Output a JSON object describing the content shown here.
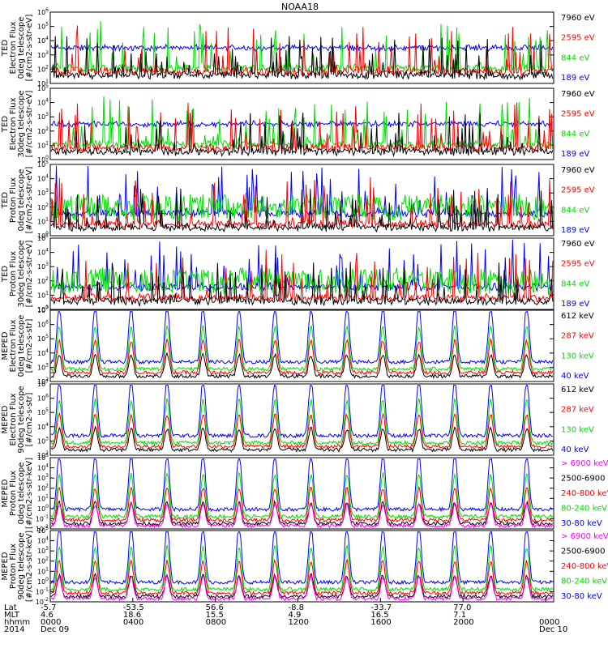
{
  "title": "NOAA18",
  "colors": {
    "black": "#000000",
    "red": "#ff0000",
    "green": "#00dd00",
    "blue": "#0000ff",
    "magenta": "#ff00ff"
  },
  "chart_data": [
    {
      "type": "line",
      "ylabel": [
        "TED",
        "Electron Flux",
        "0deg telescope",
        "[#/cm2-s-str-eV]"
      ],
      "ylog_range": [
        1,
        6
      ],
      "channels": [
        {
          "label": "7960 eV",
          "color": "black"
        },
        {
          "label": "2595 eV",
          "color": "red"
        },
        {
          "label": "844 eV",
          "color": "green"
        },
        {
          "label": "189 eV",
          "color": "blue"
        }
      ]
    },
    {
      "type": "line",
      "ylabel": [
        "TED",
        "Electron Flux",
        "30deg telescope",
        "[#/cm2-s-str-eV]"
      ],
      "ylog_range": [
        0,
        5
      ],
      "channels": [
        {
          "label": "7960 eV",
          "color": "black"
        },
        {
          "label": "2595 eV",
          "color": "red"
        },
        {
          "label": "844 eV",
          "color": "green"
        },
        {
          "label": "189 eV",
          "color": "blue"
        }
      ]
    },
    {
      "type": "line",
      "ylabel": [
        "TED",
        "Proton Flux",
        "0deg telescope",
        "[#/cm2-s-str-eV]"
      ],
      "ylog_range": [
        0,
        5
      ],
      "channels": [
        {
          "label": "7960 eV",
          "color": "black"
        },
        {
          "label": "2595 eV",
          "color": "red"
        },
        {
          "label": "844 eV",
          "color": "green"
        },
        {
          "label": "189 eV",
          "color": "blue"
        }
      ]
    },
    {
      "type": "line",
      "ylabel": [
        "TED",
        "Proton Flux",
        "30deg telescope",
        "[#/cm2-s-str-eV]"
      ],
      "ylog_range": [
        0,
        5
      ],
      "channels": [
        {
          "label": "7960 eV",
          "color": "black"
        },
        {
          "label": "2595 eV",
          "color": "red"
        },
        {
          "label": "844 eV",
          "color": "green"
        },
        {
          "label": "189 eV",
          "color": "blue"
        }
      ]
    },
    {
      "type": "line",
      "ylabel": [
        "MEPED",
        "Electron Flux",
        "0deg telescope",
        "[#/cm2-s-str]"
      ],
      "ylog_range": [
        2,
        7
      ],
      "channels": [
        {
          "label": "612 keV",
          "color": "black"
        },
        {
          "label": "287 keV",
          "color": "red"
        },
        {
          "label": "130 keV",
          "color": "green"
        },
        {
          "label": "40 keV",
          "color": "blue"
        }
      ]
    },
    {
      "type": "line",
      "ylabel": [
        "MEPED",
        "Electron Flux",
        "90deg telescope",
        "[#/cm2-s-str]"
      ],
      "ylog_range": [
        2,
        7
      ],
      "channels": [
        {
          "label": "612 keV",
          "color": "black"
        },
        {
          "label": "287 keV",
          "color": "red"
        },
        {
          "label": "130 keV",
          "color": "green"
        },
        {
          "label": "40 keV",
          "color": "blue"
        }
      ]
    },
    {
      "type": "line",
      "ylabel": [
        "MEPED",
        "Proton Flux",
        "0deg telescope",
        "[#/cm2-s-str-keV]"
      ],
      "ylog_range": [
        -2,
        5
      ],
      "channels": [
        {
          "label": "> 6900 keV",
          "color": "magenta"
        },
        {
          "label": "2500-6900",
          "color": "black"
        },
        {
          "label": "240-800 keV",
          "color": "red"
        },
        {
          "label": "80-240 keV",
          "color": "green"
        },
        {
          "label": "30-80 keV",
          "color": "blue"
        }
      ]
    },
    {
      "type": "line",
      "ylabel": [
        "MEPED",
        "Proton Flux",
        "90deg telescope",
        "[#/cm2-s-str-keV]"
      ],
      "ylog_range": [
        -2,
        5
      ],
      "channels": [
        {
          "label": "> 6900 keV",
          "color": "magenta"
        },
        {
          "label": "2500-6900",
          "color": "black"
        },
        {
          "label": "240-800 keV",
          "color": "red"
        },
        {
          "label": "80-240 keV",
          "color": "green"
        },
        {
          "label": "30-80 keV",
          "color": "blue"
        }
      ]
    }
  ],
  "x_axis": {
    "row_labels": [
      "Lat",
      "MLT",
      "hhmm",
      "2014"
    ],
    "ticks": [
      {
        "lat": "-5.7",
        "mlt": "4.6",
        "hhmm": "0000",
        "date": "Dec 09"
      },
      {
        "lat": "-53.5",
        "mlt": "18.6",
        "hhmm": "0400",
        "date": ""
      },
      {
        "lat": "56.6",
        "mlt": "15.5",
        "hhmm": "0800",
        "date": ""
      },
      {
        "lat": "-8.8",
        "mlt": "4.9",
        "hhmm": "1200",
        "date": ""
      },
      {
        "lat": "-33.7",
        "mlt": "16.5",
        "hhmm": "1600",
        "date": ""
      },
      {
        "lat": "77.0",
        "mlt": "7.1",
        "hhmm": "2000",
        "date": ""
      },
      {
        "lat": "",
        "mlt": "",
        "hhmm": "0000",
        "date": "Dec 10"
      }
    ]
  }
}
